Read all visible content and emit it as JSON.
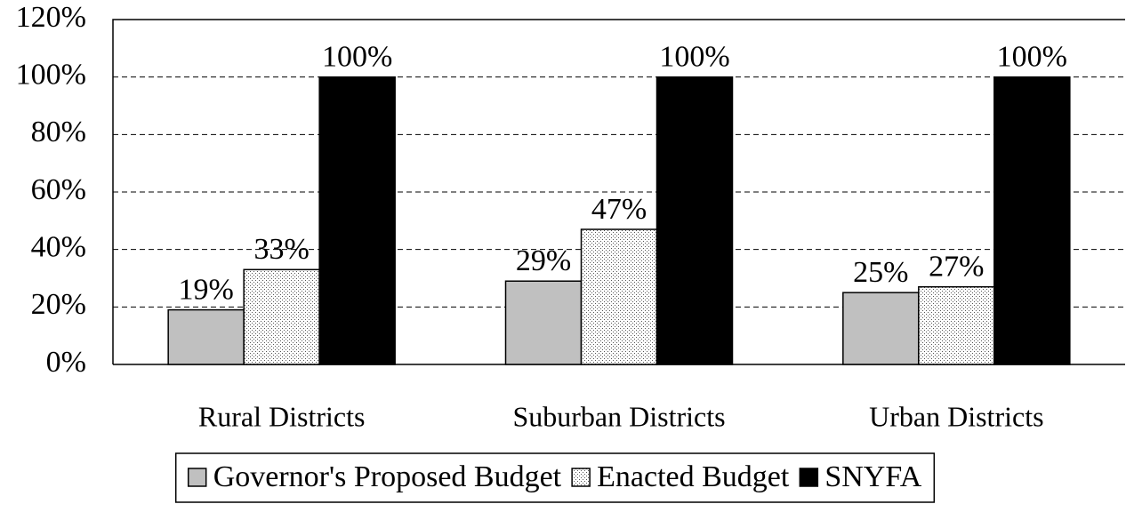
{
  "chart_data": {
    "type": "bar",
    "categories": [
      "Rural Districts",
      "Suburban Districts",
      "Urban Districts"
    ],
    "series": [
      {
        "name": "Governor's Proposed Budget",
        "color": "#c0c0c0",
        "values": [
          19,
          29,
          25
        ],
        "value_labels": [
          "19%",
          "29%",
          "25%"
        ]
      },
      {
        "name": "Enacted Budget",
        "color": "#ffffff",
        "pattern": "dotted",
        "values": [
          33,
          47,
          27
        ],
        "value_labels": [
          "33%",
          "47%",
          "27%"
        ]
      },
      {
        "name": "SNYFA",
        "color": "#000000",
        "values": [
          100,
          100,
          100
        ],
        "value_labels": [
          "100%",
          "100%",
          "100%"
        ]
      }
    ],
    "ylim": [
      0,
      120
    ],
    "yticks": [
      {
        "value": 0,
        "label": "0%"
      },
      {
        "value": 20,
        "label": "20%"
      },
      {
        "value": 40,
        "label": "40%"
      },
      {
        "value": 60,
        "label": "60%"
      },
      {
        "value": 80,
        "label": "80%"
      },
      {
        "value": 100,
        "label": "100%"
      },
      {
        "value": 120,
        "label": "120%"
      }
    ],
    "grid": true,
    "legend": "bottom"
  }
}
